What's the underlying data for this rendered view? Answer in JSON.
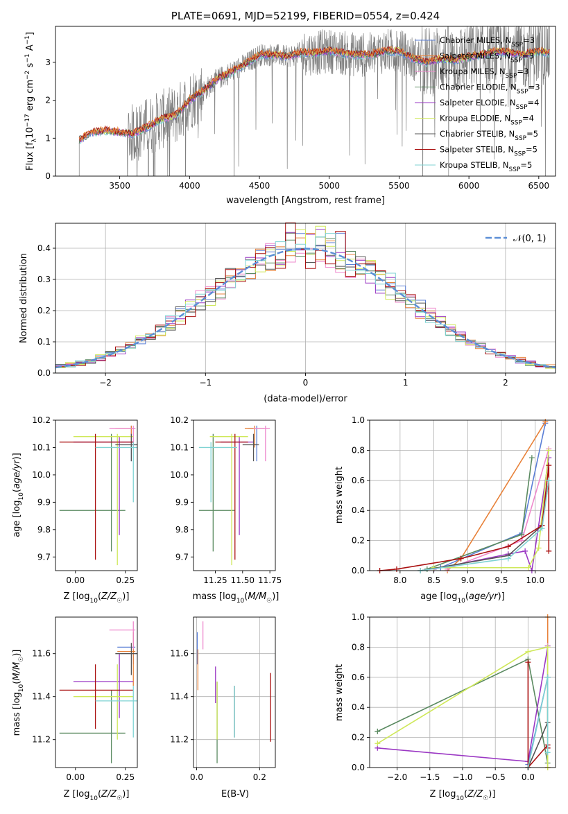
{
  "colors": {
    "cmiles": "#5b7fd6",
    "smiles": "#e8823a",
    "kmiles": "#ee88cc",
    "celodie": "#5a8a60",
    "selodie": "#9b38c4",
    "kelodie": "#cfe85a",
    "cstelib": "#555555",
    "sstelib": "#aa1111",
    "kstelib": "#7fd3d3",
    "normal": "#5b8ed6",
    "data": "#808080"
  },
  "chart_data": [
    {
      "id": "spectrum",
      "type": "line",
      "title": "PLATE=0691, MJD=52199, FIBERID=0554, z=0.424",
      "xlabel": "wavelength [Angstrom, rest frame]",
      "ylabel": "Flux [f_λ 10^-17 erg cm^-2 s^-1 A^-1]",
      "xlim": [
        3040,
        6620
      ],
      "ylim": [
        0,
        3.95
      ],
      "xticks": [
        3500,
        4000,
        4500,
        5000,
        5500,
        6000,
        6500
      ],
      "yticks": [
        0,
        1,
        2,
        3
      ],
      "continuum": {
        "x": [
          3210,
          3300,
          3400,
          3500,
          3600,
          3700,
          3800,
          3900,
          4000,
          4100,
          4200,
          4300,
          4400,
          4500,
          4600,
          4700,
          4800,
          4900,
          5000,
          5100,
          5200,
          5300,
          5400,
          5500,
          5600,
          5700,
          5800,
          5900,
          6000,
          6100,
          6200,
          6300,
          6400,
          6500,
          6580
        ],
        "y": [
          0.95,
          1.15,
          1.2,
          1.15,
          1.12,
          1.3,
          1.5,
          1.6,
          2.0,
          2.25,
          2.55,
          2.75,
          2.95,
          3.2,
          3.2,
          3.15,
          3.25,
          3.25,
          3.3,
          3.25,
          3.2,
          3.2,
          3.3,
          3.3,
          3.1,
          3.0,
          3.1,
          3.05,
          3.15,
          3.2,
          3.3,
          3.25,
          3.2,
          3.3,
          3.25
        ]
      },
      "legend_position": "top-right",
      "series": [
        {
          "name": "Chabrier MILES, N_SSP=3",
          "color_key": "cmiles"
        },
        {
          "name": "Salpeter MILES, N_SSP=3",
          "color_key": "smiles"
        },
        {
          "name": "Kroupa MILES, N_SSP=3",
          "color_key": "kmiles"
        },
        {
          "name": "Chabrier ELODIE, N_SSP=3",
          "color_key": "celodie"
        },
        {
          "name": "Salpeter ELODIE, N_SSP=4",
          "color_key": "selodie"
        },
        {
          "name": "Kroupa ELODIE, N_SSP=4",
          "color_key": "kelodie"
        },
        {
          "name": "Chabrier STELIB, N_SSP=5",
          "color_key": "cstelib"
        },
        {
          "name": "Salpeter STELIB, N_SSP=5",
          "color_key": "sstelib"
        },
        {
          "name": "Kroupa STELIB, N_SSP=5",
          "color_key": "kstelib"
        }
      ]
    },
    {
      "id": "residuals",
      "type": "line",
      "xlabel": "(data-model)/error",
      "ylabel": "Normed distribution",
      "xlim": [
        -2.5,
        2.5
      ],
      "ylim": [
        0,
        0.48
      ],
      "xticks": [
        -2,
        -1,
        0,
        1,
        2
      ],
      "yticks": [
        0.0,
        0.1,
        0.2,
        0.3,
        0.4
      ],
      "grid": true,
      "legend": "𝒩(0, 1)",
      "legend_position": "top-right"
    },
    {
      "id": "age_vs_Z",
      "type": "scatter",
      "xlabel": "Z [log10(Z/Z☉)]",
      "ylabel": "age  [log10(age/yr)]",
      "xlim": [
        -0.1,
        0.31
      ],
      "ylim": [
        9.65,
        10.2
      ],
      "xticks": [
        0.0,
        0.25
      ],
      "yticks": [
        9.7,
        9.8,
        9.9,
        10.0,
        10.1,
        10.2
      ],
      "points": [
        {
          "c": "cmiles",
          "x": 0.28,
          "y": 10.17,
          "ex": [
            0.22,
            0.3
          ],
          "ey": [
            10.05,
            10.18
          ]
        },
        {
          "c": "smiles",
          "x": 0.28,
          "y": 10.17,
          "ex": [
            0.2,
            0.3
          ],
          "ey": [
            10.1,
            10.18
          ]
        },
        {
          "c": "kmiles",
          "x": 0.29,
          "y": 10.17,
          "ex": [
            0.17,
            0.3
          ],
          "ey": [
            10.1,
            10.18
          ]
        },
        {
          "c": "celodie",
          "x": 0.18,
          "y": 9.87,
          "ex": [
            -0.08,
            0.25
          ],
          "ey": [
            9.72,
            10.15
          ]
        },
        {
          "c": "selodie",
          "x": 0.22,
          "y": 10.12,
          "ex": [
            -0.01,
            0.29
          ],
          "ey": [
            9.78,
            10.14
          ]
        },
        {
          "c": "kelodie",
          "x": 0.21,
          "y": 10.14,
          "ex": [
            -0.01,
            0.29
          ],
          "ey": [
            9.67,
            10.15
          ]
        },
        {
          "c": "cstelib",
          "x": 0.28,
          "y": 10.11,
          "ex": [
            0.2,
            0.31
          ],
          "ey": [
            10.05,
            10.15
          ]
        },
        {
          "c": "sstelib",
          "x": 0.1,
          "y": 10.12,
          "ex": [
            -0.08,
            0.29
          ],
          "ey": [
            9.69,
            10.15
          ]
        },
        {
          "c": "kstelib",
          "x": 0.29,
          "y": 10.1,
          "ex": [
            0.1,
            0.31
          ],
          "ey": [
            9.9,
            10.12
          ]
        }
      ]
    },
    {
      "id": "age_vs_mass",
      "type": "scatter",
      "xlabel": "mass [log10(M/M☉)]",
      "ylabel": "",
      "xlim": [
        11.05,
        11.8
      ],
      "ylim": [
        9.65,
        10.2
      ],
      "xticks": [
        11.25,
        11.5,
        11.75
      ],
      "yticks": [
        9.7,
        9.8,
        9.9,
        10.0,
        10.1,
        10.2
      ],
      "points": [
        {
          "c": "cmiles",
          "x": 11.63,
          "y": 10.17,
          "ex": [
            11.55,
            11.7
          ],
          "ey": [
            10.05,
            10.18
          ]
        },
        {
          "c": "smiles",
          "x": 11.61,
          "y": 10.17,
          "ex": [
            11.52,
            11.7
          ],
          "ey": [
            10.1,
            10.18
          ]
        },
        {
          "c": "kmiles",
          "x": 11.71,
          "y": 10.17,
          "ex": [
            11.6,
            11.75
          ],
          "ey": [
            10.05,
            10.18
          ]
        },
        {
          "c": "celodie",
          "x": 11.23,
          "y": 9.87,
          "ex": [
            11.1,
            11.43
          ],
          "ey": [
            9.72,
            10.15
          ]
        },
        {
          "c": "selodie",
          "x": 11.47,
          "y": 10.12,
          "ex": [
            11.3,
            11.6
          ],
          "ey": [
            9.78,
            10.14
          ]
        },
        {
          "c": "kelodie",
          "x": 11.4,
          "y": 10.14,
          "ex": [
            11.2,
            11.55
          ],
          "ey": [
            9.67,
            10.15
          ]
        },
        {
          "c": "cstelib",
          "x": 11.6,
          "y": 10.11,
          "ex": [
            11.5,
            11.65
          ],
          "ey": [
            10.05,
            10.15
          ]
        },
        {
          "c": "sstelib",
          "x": 11.43,
          "y": 10.12,
          "ex": [
            11.25,
            11.55
          ],
          "ey": [
            9.69,
            10.15
          ]
        },
        {
          "c": "kstelib",
          "x": 11.21,
          "y": 10.1,
          "ex": [
            11.1,
            11.45
          ],
          "ey": [
            9.9,
            10.12
          ]
        }
      ]
    },
    {
      "id": "mw_vs_age",
      "type": "line",
      "xlabel": "age  [log10(age/yr)]",
      "ylabel": "mass weight",
      "xlim": [
        7.55,
        10.3
      ],
      "ylim": [
        0,
        1.0
      ],
      "xticks": [
        8.0,
        8.5,
        9.0,
        9.5,
        10.0
      ],
      "yticks": [
        0.0,
        0.2,
        0.4,
        0.6,
        0.8,
        1.0
      ],
      "grid": true,
      "series": [
        {
          "c": "cmiles",
          "x": [
            8.6,
            9.8,
            10.15
          ],
          "y": [
            0.02,
            0.25,
            0.98
          ]
        },
        {
          "c": "smiles",
          "x": [
            8.7,
            8.9,
            10.15
          ],
          "y": [
            0.0,
            0.08,
            0.99
          ]
        },
        {
          "c": "kmiles",
          "x": [
            8.7,
            9.8,
            10.2
          ],
          "y": [
            0.01,
            0.2,
            0.81
          ]
        },
        {
          "c": "celodie",
          "x": [
            8.4,
            9.8,
            9.95
          ],
          "y": [
            0.01,
            0.24,
            0.75
          ]
        },
        {
          "c": "selodie",
          "x": [
            8.5,
            9.6,
            9.85,
            9.95,
            10.2
          ],
          "y": [
            0.01,
            0.11,
            0.13,
            0.0,
            0.75
          ]
        },
        {
          "c": "kelodie",
          "x": [
            8.5,
            9.9,
            10.05,
            10.2
          ],
          "y": [
            0.02,
            0.02,
            0.15,
            0.8
          ]
        },
        {
          "c": "cstelib",
          "x": [
            8.3,
            9.6,
            10.1,
            10.2
          ],
          "y": [
            0.0,
            0.1,
            0.3,
            0.6
          ]
        },
        {
          "c": "sstelib",
          "x": [
            7.7,
            7.95,
            8.9,
            9.6,
            10.1,
            10.2,
            10.2
          ],
          "y": [
            0.0,
            0.01,
            0.08,
            0.16,
            0.3,
            0.7,
            0.13
          ]
        },
        {
          "c": "kstelib",
          "x": [
            8.3,
            9.6,
            10.1,
            10.2
          ],
          "y": [
            0.0,
            0.08,
            0.28,
            0.6
          ]
        }
      ]
    },
    {
      "id": "mass_vs_Z",
      "type": "scatter",
      "xlabel": "Z [log10(Z/Z☉)]",
      "ylabel": "mass [log10(M/M☉)]",
      "xlim": [
        -0.1,
        0.31
      ],
      "ylim": [
        11.07,
        11.77
      ],
      "xticks": [
        0.0,
        0.25
      ],
      "yticks": [
        11.2,
        11.4,
        11.6
      ],
      "points": [
        {
          "c": "cmiles",
          "x": 0.29,
          "y": 11.63,
          "ex": [
            0.21,
            0.3
          ],
          "ey": [
            11.55,
            11.7
          ]
        },
        {
          "c": "smiles",
          "x": 0.29,
          "y": 11.61,
          "ex": [
            0.21,
            0.3
          ],
          "ey": [
            11.45,
            11.7
          ]
        },
        {
          "c": "kmiles",
          "x": 0.29,
          "y": 11.71,
          "ex": [
            0.17,
            0.3
          ],
          "ey": [
            11.62,
            11.75
          ]
        },
        {
          "c": "celodie",
          "x": 0.18,
          "y": 11.23,
          "ex": [
            -0.08,
            0.25
          ],
          "ey": [
            11.09,
            11.43
          ]
        },
        {
          "c": "selodie",
          "x": 0.22,
          "y": 11.47,
          "ex": [
            -0.01,
            0.29
          ],
          "ey": [
            11.3,
            11.6
          ]
        },
        {
          "c": "kelodie",
          "x": 0.21,
          "y": 11.4,
          "ex": [
            -0.01,
            0.29
          ],
          "ey": [
            11.2,
            11.55
          ]
        },
        {
          "c": "cstelib",
          "x": 0.28,
          "y": 11.6,
          "ex": [
            0.2,
            0.31
          ],
          "ey": [
            11.5,
            11.65
          ]
        },
        {
          "c": "sstelib",
          "x": 0.1,
          "y": 11.43,
          "ex": [
            -0.08,
            0.29
          ],
          "ey": [
            11.25,
            11.55
          ]
        },
        {
          "c": "kstelib",
          "x": 0.29,
          "y": 11.38,
          "ex": [
            0.1,
            0.31
          ],
          "ey": [
            11.21,
            11.45
          ]
        }
      ]
    },
    {
      "id": "mass_vs_ebv",
      "type": "scatter",
      "xlabel": "E(B-V)",
      "ylabel": "",
      "xlim": [
        -0.01,
        0.25
      ],
      "ylim": [
        11.07,
        11.77
      ],
      "xticks": [
        0.0,
        0.2
      ],
      "yticks": [
        11.2,
        11.4,
        11.6
      ],
      "grid": true,
      "points": [
        {
          "c": "cmiles",
          "x": 0.002,
          "y": 11.63,
          "ey": [
            11.55,
            11.7
          ]
        },
        {
          "c": "smiles",
          "x": 0.004,
          "y": 11.55,
          "ey": [
            11.43,
            11.62
          ]
        },
        {
          "c": "kmiles",
          "x": 0.02,
          "y": 11.68,
          "ey": [
            11.62,
            11.75
          ]
        },
        {
          "c": "celodie",
          "x": 0.065,
          "y": 11.3,
          "ey": [
            11.09,
            11.47
          ]
        },
        {
          "c": "selodie",
          "x": 0.06,
          "y": 11.47,
          "ey": [
            11.37,
            11.54
          ]
        },
        {
          "c": "kelodie",
          "x": 0.065,
          "y": 11.35,
          "ey": [
            11.2,
            11.47
          ]
        },
        {
          "c": "cstelib",
          "x": 0.12,
          "y": 11.38,
          "ey": [
            11.21,
            11.45
          ]
        },
        {
          "c": "sstelib",
          "x": 0.235,
          "y": 11.35,
          "ey": [
            11.19,
            11.51
          ]
        },
        {
          "c": "kstelib",
          "x": 0.12,
          "y": 11.33,
          "ey": [
            11.21,
            11.45
          ]
        }
      ]
    },
    {
      "id": "mw_vs_Z",
      "type": "line",
      "xlabel": "Z [log10(Z/Z☉)]",
      "ylabel": "mass weight",
      "xlim": [
        -2.42,
        0.42
      ],
      "ylim": [
        0,
        1.0
      ],
      "xticks": [
        -2.0,
        -1.5,
        -1.0,
        -0.5,
        0.0
      ],
      "yticks": [
        0.0,
        0.2,
        0.4,
        0.6,
        0.8,
        1.0
      ],
      "grid": true,
      "series": [
        {
          "c": "cmiles",
          "x": [
            0.0,
            0.3,
            0.3
          ],
          "y": [
            0.02,
            0.6,
            0.81
          ]
        },
        {
          "c": "smiles",
          "x": [
            0.3,
            0.3
          ],
          "y": [
            0.0,
            1.0
          ]
        },
        {
          "c": "kmiles",
          "x": [
            0.3,
            0.3
          ],
          "y": [
            0.0,
            0.81
          ]
        },
        {
          "c": "celodie",
          "x": [
            -2.3,
            0.0,
            0.3
          ],
          "y": [
            0.24,
            0.72,
            0.03
          ]
        },
        {
          "c": "selodie",
          "x": [
            -2.3,
            0.0,
            0.3
          ],
          "y": [
            0.13,
            0.04,
            0.8
          ]
        },
        {
          "c": "kelodie",
          "x": [
            -2.3,
            0.0,
            0.3,
            0.3
          ],
          "y": [
            0.16,
            0.77,
            0.8,
            0.0
          ]
        },
        {
          "c": "cstelib",
          "x": [
            0.0,
            0.3,
            0.3
          ],
          "y": [
            0.0,
            0.3,
            0.6
          ]
        },
        {
          "c": "sstelib",
          "x": [
            -0.0,
            -0.0,
            0.3,
            0.3
          ],
          "y": [
            0.7,
            0.0,
            0.15,
            0.13
          ]
        },
        {
          "c": "kstelib",
          "x": [
            0.0,
            0.3,
            0.3
          ],
          "y": [
            0.0,
            0.6,
            0.1
          ]
        }
      ]
    }
  ]
}
